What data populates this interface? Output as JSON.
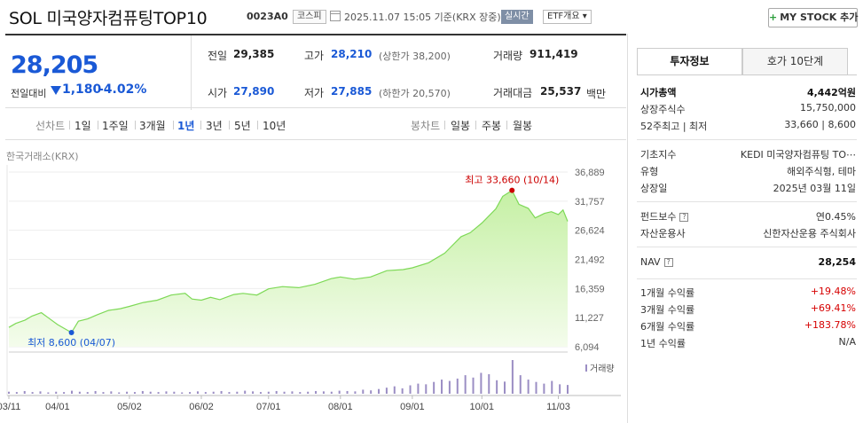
{
  "header": {
    "stock_name": "SOL 미국양자컴퓨팅TOP10",
    "stock_code": "0023A0",
    "market": "코스피",
    "as_of": "2025.11.07 15:05 기준(KRX 장중)",
    "realtime_label": "실시간",
    "etf_info_label": "ETF개요",
    "mystock_label": "MY STOCK 추가"
  },
  "summary": {
    "current_price": "28,205",
    "change_label": "전일대비",
    "change_value": "1,180",
    "change_pct": "-4.02%",
    "items": [
      {
        "label": "전일",
        "value": "29,385",
        "sub": ""
      },
      {
        "label": "고가",
        "value": "28,210",
        "sub": "(상한가 38,200)"
      },
      {
        "label": "거래량",
        "value": "911,419",
        "sub": ""
      },
      {
        "label": "시가",
        "value": "27,890",
        "sub": ""
      },
      {
        "label": "저가",
        "value": "27,885",
        "sub": "(하한가 20,570)"
      },
      {
        "label": "거래대금",
        "value": "25,537",
        "sub": "백만"
      }
    ]
  },
  "period_bar": {
    "line_label": "선차트",
    "line_periods": [
      "1일",
      "1주일",
      "3개월",
      "1년",
      "3년",
      "5년",
      "10년"
    ],
    "active_period": "1년",
    "candle_label": "봉차트",
    "candle_periods": [
      "일봉",
      "주봉",
      "월봉"
    ]
  },
  "chart": {
    "source_label": "한국거래소(KRX)",
    "y_ticks": [
      "36,889",
      "31,757",
      "26,624",
      "21,492",
      "16,359",
      "11,227",
      "6,094"
    ],
    "x_ticks": [
      "03/11",
      "04/01",
      "05/02",
      "06/02",
      "07/01",
      "08/01",
      "09/01",
      "10/01",
      "11/03"
    ],
    "max_label": "최고 33,660 (10/14)",
    "min_label": "최저 8,600 (04/07)",
    "volume_legend": "거래량",
    "colors": {
      "line": "#7ed957",
      "fill_top": "#c5f0a4",
      "fill_bottom": "#f4fcec",
      "volume": "#9b8ec4",
      "max": "#cc0000",
      "min": "#1a59d6"
    }
  },
  "chart_data": {
    "type": "area",
    "title": "",
    "ylim": [
      6094,
      36889
    ],
    "x_range": [
      "2025-03-11",
      "2025-11-07"
    ],
    "price_points": [
      [
        "03/11",
        9500
      ],
      [
        "03/14",
        10200
      ],
      [
        "03/18",
        10800
      ],
      [
        "03/21",
        11500
      ],
      [
        "03/25",
        12100
      ],
      [
        "03/28",
        11200
      ],
      [
        "04/01",
        10000
      ],
      [
        "04/04",
        9300
      ],
      [
        "04/07",
        8600
      ],
      [
        "04/10",
        10600
      ],
      [
        "04/14",
        11000
      ],
      [
        "04/18",
        11700
      ],
      [
        "04/23",
        12500
      ],
      [
        "04/28",
        12800
      ],
      [
        "05/02",
        13200
      ],
      [
        "05/08",
        13900
      ],
      [
        "05/14",
        14300
      ],
      [
        "05/20",
        15200
      ],
      [
        "05/26",
        15500
      ],
      [
        "05/29",
        14500
      ],
      [
        "06/02",
        14300
      ],
      [
        "06/06",
        14800
      ],
      [
        "06/10",
        14400
      ],
      [
        "06/16",
        15300
      ],
      [
        "06/20",
        15500
      ],
      [
        "06/26",
        15200
      ],
      [
        "07/01",
        16300
      ],
      [
        "07/07",
        16700
      ],
      [
        "07/14",
        16500
      ],
      [
        "07/21",
        17100
      ],
      [
        "07/28",
        18100
      ],
      [
        "08/01",
        18400
      ],
      [
        "08/07",
        18000
      ],
      [
        "08/14",
        18400
      ],
      [
        "08/21",
        19500
      ],
      [
        "08/28",
        19700
      ],
      [
        "09/01",
        20000
      ],
      [
        "09/08",
        20900
      ],
      [
        "09/15",
        22600
      ],
      [
        "09/22",
        25500
      ],
      [
        "09/26",
        26200
      ],
      [
        "10/01",
        27900
      ],
      [
        "10/07",
        30400
      ],
      [
        "10/10",
        32600
      ],
      [
        "10/14",
        33660
      ],
      [
        "10/17",
        31200
      ],
      [
        "10/21",
        30500
      ],
      [
        "10/24",
        28800
      ],
      [
        "10/28",
        29600
      ],
      [
        "10/31",
        29900
      ],
      [
        "11/03",
        29400
      ],
      [
        "11/05",
        30200
      ],
      [
        "11/07",
        28205
      ]
    ],
    "volume_relative": [
      0.06,
      0.05,
      0.08,
      0.05,
      0.07,
      0.04,
      0.06,
      0.05,
      0.09,
      0.06,
      0.05,
      0.08,
      0.05,
      0.07,
      0.04,
      0.06,
      0.05,
      0.08,
      0.06,
      0.05,
      0.07,
      0.06,
      0.04,
      0.05,
      0.07,
      0.05,
      0.06,
      0.08,
      0.05,
      0.06,
      0.09,
      0.07,
      0.05,
      0.06,
      0.08,
      0.06,
      0.07,
      0.05,
      0.06,
      0.08,
      0.07,
      0.06,
      0.09,
      0.08,
      0.07,
      0.12,
      0.1,
      0.14,
      0.18,
      0.22,
      0.16,
      0.25,
      0.3,
      0.28,
      0.35,
      0.42,
      0.38,
      0.45,
      0.55,
      0.48,
      0.62,
      0.58,
      0.4,
      0.36,
      1.0,
      0.55,
      0.42,
      0.35,
      0.3,
      0.38,
      0.28,
      0.26
    ]
  },
  "right_panel": {
    "tabs": [
      "투자정보",
      "호가 10단계"
    ],
    "group1": [
      {
        "label": "시가총액",
        "value": "4,442억원",
        "bold": true
      },
      {
        "label": "상장주식수",
        "value": "15,750,000",
        "bold": false
      },
      {
        "label": "52주최고 | 최저",
        "value": "33,660 | 8,600",
        "bold": false
      }
    ],
    "group2": [
      {
        "label": "기초지수",
        "value": "KEDI 미국양자컴퓨팅 TO⋯"
      },
      {
        "label": "유형",
        "value": "해외주식형, 테마"
      },
      {
        "label": "상장일",
        "value": "2025년 03월 11일"
      }
    ],
    "group3": [
      {
        "label": "펀드보수",
        "value": "연0.45%",
        "help": true
      },
      {
        "label": "자산운용사",
        "value": "신한자산운용 주식회사",
        "help": false
      }
    ],
    "nav": {
      "label": "NAV",
      "value": "28,254"
    },
    "returns": [
      {
        "label": "1개월 수익률",
        "value": "+19.48%"
      },
      {
        "label": "3개월 수익률",
        "value": "+69.41%"
      },
      {
        "label": "6개월 수익률",
        "value": "+183.78%"
      },
      {
        "label": "1년 수익률",
        "value": "N/A"
      }
    ]
  }
}
